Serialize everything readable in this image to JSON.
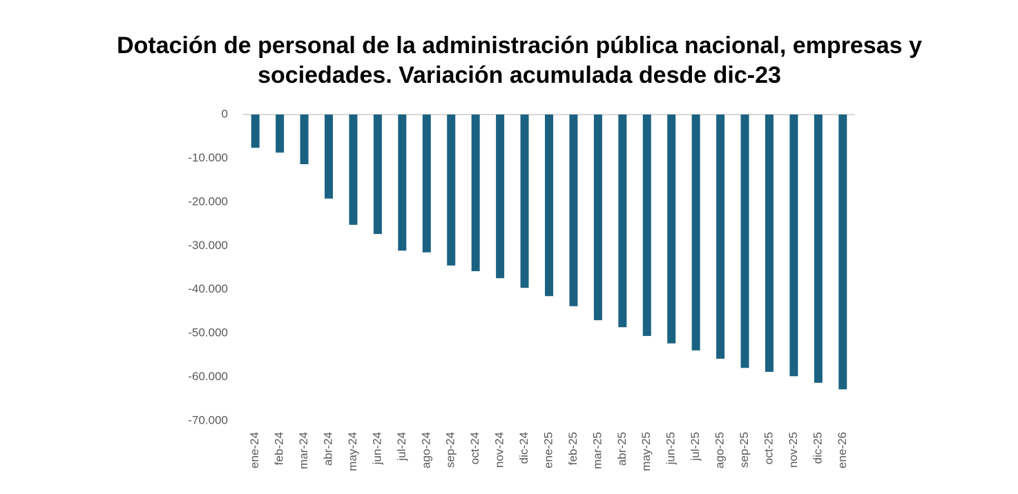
{
  "chart_data": {
    "type": "bar",
    "title": [
      "Dotación de personal de la administración pública nacional, empresas y",
      "sociedades. Variación acumulada desde dic-23"
    ],
    "categories": [
      "ene-24",
      "feb-24",
      "mar-24",
      "abr-24",
      "may-24",
      "jun-24",
      "jul-24",
      "ago-24",
      "sep-24",
      "oct-24",
      "nov-24",
      "dic-24",
      "ene-25",
      "feb-25",
      "mar-25",
      "abr-25",
      "may-25",
      "jun-25",
      "jul-25",
      "ago-25",
      "sep-25",
      "oct-25",
      "nov-25",
      "dic-25",
      "ene-26"
    ],
    "values": [
      -7600,
      -8700,
      -11350,
      -19200,
      -25200,
      -27300,
      -31100,
      -31500,
      -34500,
      -35800,
      -37400,
      -39600,
      -41500,
      -43800,
      -47000,
      -48600,
      -50600,
      -52300,
      -53900,
      -55800,
      -57900,
      -58800,
      -59800,
      -61300,
      -62800
    ],
    "color": "#1b6282",
    "ylim": [
      -70000,
      0
    ],
    "yticks": [
      0,
      {
        "value": -10000,
        "label": "-10.000"
      },
      {
        "value": -20000,
        "label": "-20.000"
      },
      {
        "value": -30000,
        "label": "-30.000"
      },
      {
        "value": -40000,
        "label": "-40.000"
      },
      {
        "value": -50000,
        "label": "-50.000"
      },
      {
        "value": -60000,
        "label": "-60.000"
      },
      {
        "value": -70000,
        "label": "-70.000"
      }
    ],
    "grid": false
  }
}
